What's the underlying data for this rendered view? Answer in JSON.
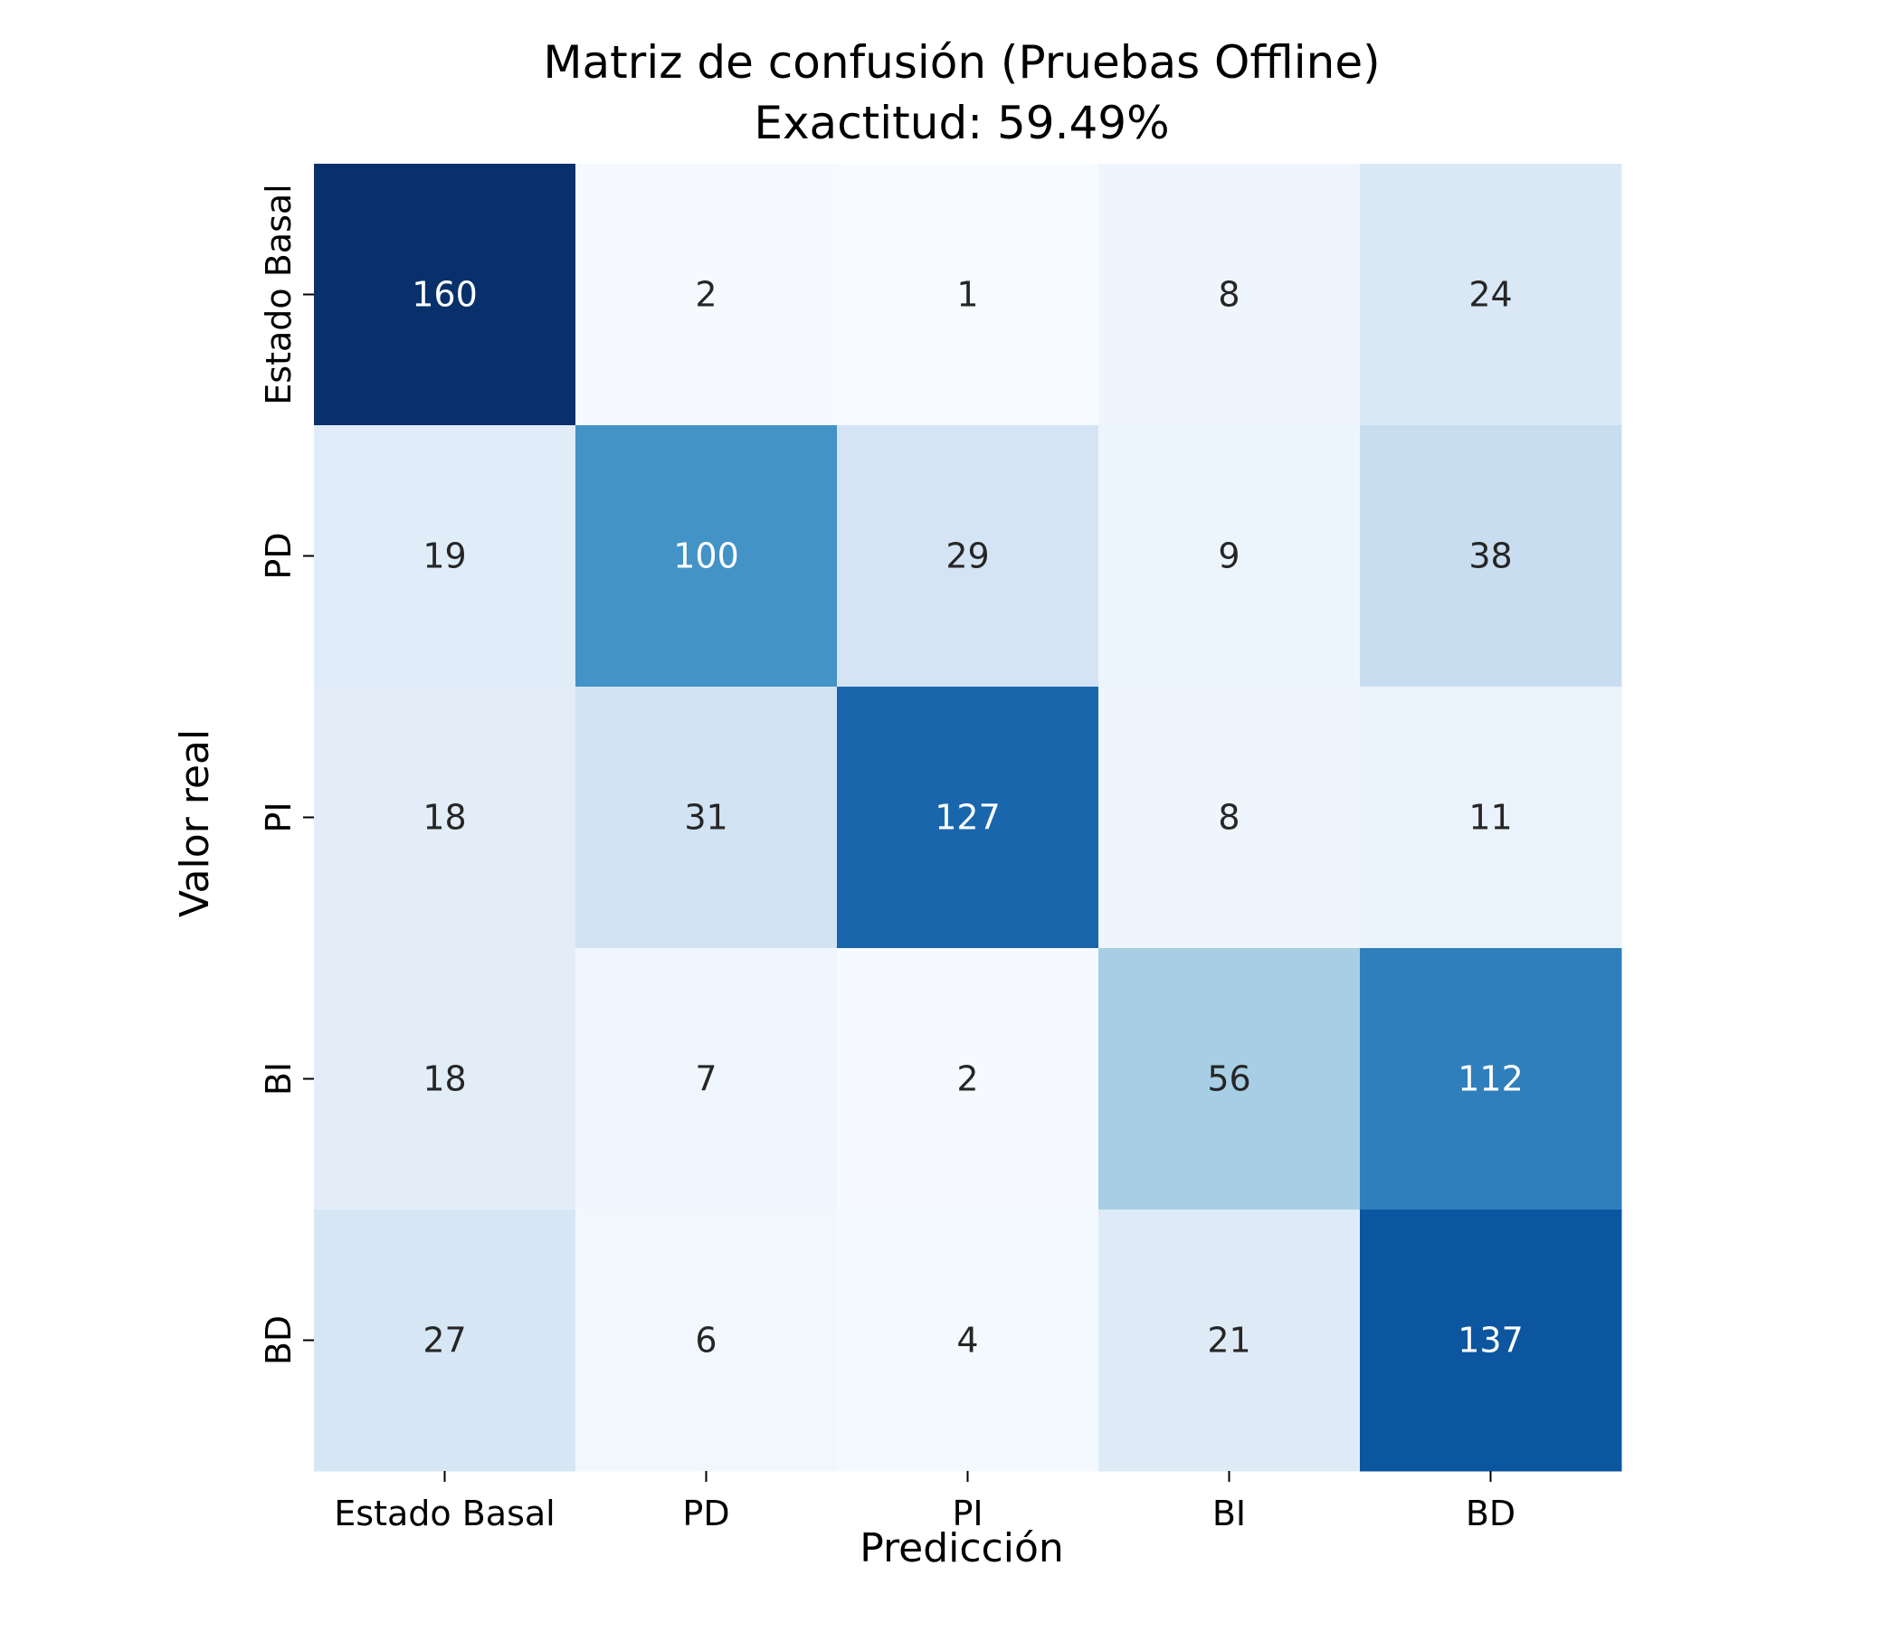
{
  "chart_data": {
    "type": "heatmap",
    "title": "Matriz de confusión (Pruebas Offline)",
    "subtitle": "Exactitud: 59.49%",
    "xlabel": "Predicción",
    "ylabel": "Valor real",
    "x_categories": [
      "Estado Basal",
      "PD",
      "PI",
      "BI",
      "BD"
    ],
    "y_categories": [
      "Estado Basal",
      "PD",
      "PI",
      "BI",
      "BD"
    ],
    "values": [
      [
        160,
        2,
        1,
        8,
        24
      ],
      [
        19,
        100,
        29,
        9,
        38
      ],
      [
        18,
        31,
        127,
        8,
        11
      ],
      [
        18,
        7,
        2,
        56,
        112
      ],
      [
        27,
        6,
        4,
        21,
        137
      ]
    ],
    "colormap": "Blues",
    "vmin": 1,
    "vmax": 160,
    "colorbar": false,
    "colors": {
      "cmap_light": "#f7fbff",
      "cmap_dark": "#08306b",
      "text_dark": "#262626",
      "text_light": "#ffffff",
      "axis": "#000000"
    }
  }
}
